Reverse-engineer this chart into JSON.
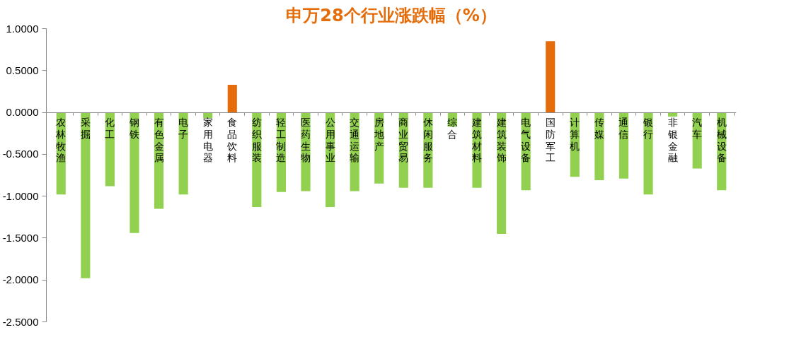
{
  "chart_data": {
    "type": "bar",
    "title": "申万28个行业涨跌幅（%）",
    "categories": [
      "农林牧渔",
      "采掘",
      "化工",
      "钢铁",
      "有色金属",
      "电子",
      "家用电器",
      "食品饮料",
      "纺织服装",
      "轻工制造",
      "医药生物",
      "公用事业",
      "交通运输",
      "房地产",
      "商业贸易",
      "休闲服务",
      "综合",
      "建筑材料",
      "建筑装饰",
      "电气设备",
      "国防军工",
      "计算机",
      "传媒",
      "通信",
      "银行",
      "非银金融",
      "汽车",
      "机械设备"
    ],
    "values": [
      -0.98,
      -1.98,
      -0.88,
      -1.44,
      -1.15,
      -0.98,
      -0.07,
      0.33,
      -1.13,
      -0.95,
      -0.94,
      -1.13,
      -0.94,
      -0.85,
      -0.9,
      -0.9,
      -0.17,
      -0.9,
      -1.45,
      -0.93,
      0.85,
      -0.77,
      -0.81,
      -0.79,
      -0.98,
      -0.05,
      -0.67,
      -0.93
    ],
    "colors": [
      "#92d050",
      "#92d050",
      "#92d050",
      "#92d050",
      "#92d050",
      "#92d050",
      "#92d050",
      "#e46c0a",
      "#92d050",
      "#92d050",
      "#92d050",
      "#92d050",
      "#92d050",
      "#92d050",
      "#92d050",
      "#92d050",
      "#92d050",
      "#92d050",
      "#92d050",
      "#92d050",
      "#e46c0a",
      "#92d050",
      "#92d050",
      "#92d050",
      "#92d050",
      "#92d050",
      "#92d050",
      "#92d050"
    ],
    "ylim": [
      -2.5,
      1.0
    ],
    "yticks": [
      {
        "value": 1.0,
        "label": "1.0000"
      },
      {
        "value": 0.5,
        "label": "0.5000"
      },
      {
        "value": 0.0,
        "label": "0.0000"
      },
      {
        "value": -0.5,
        "label": "-0.5000"
      },
      {
        "value": -1.0,
        "label": "-1.0000"
      },
      {
        "value": -1.5,
        "label": "-1.5000"
      },
      {
        "value": -2.0,
        "label": "-2.0000"
      },
      {
        "value": -2.5,
        "label": "-2.5000"
      }
    ]
  }
}
